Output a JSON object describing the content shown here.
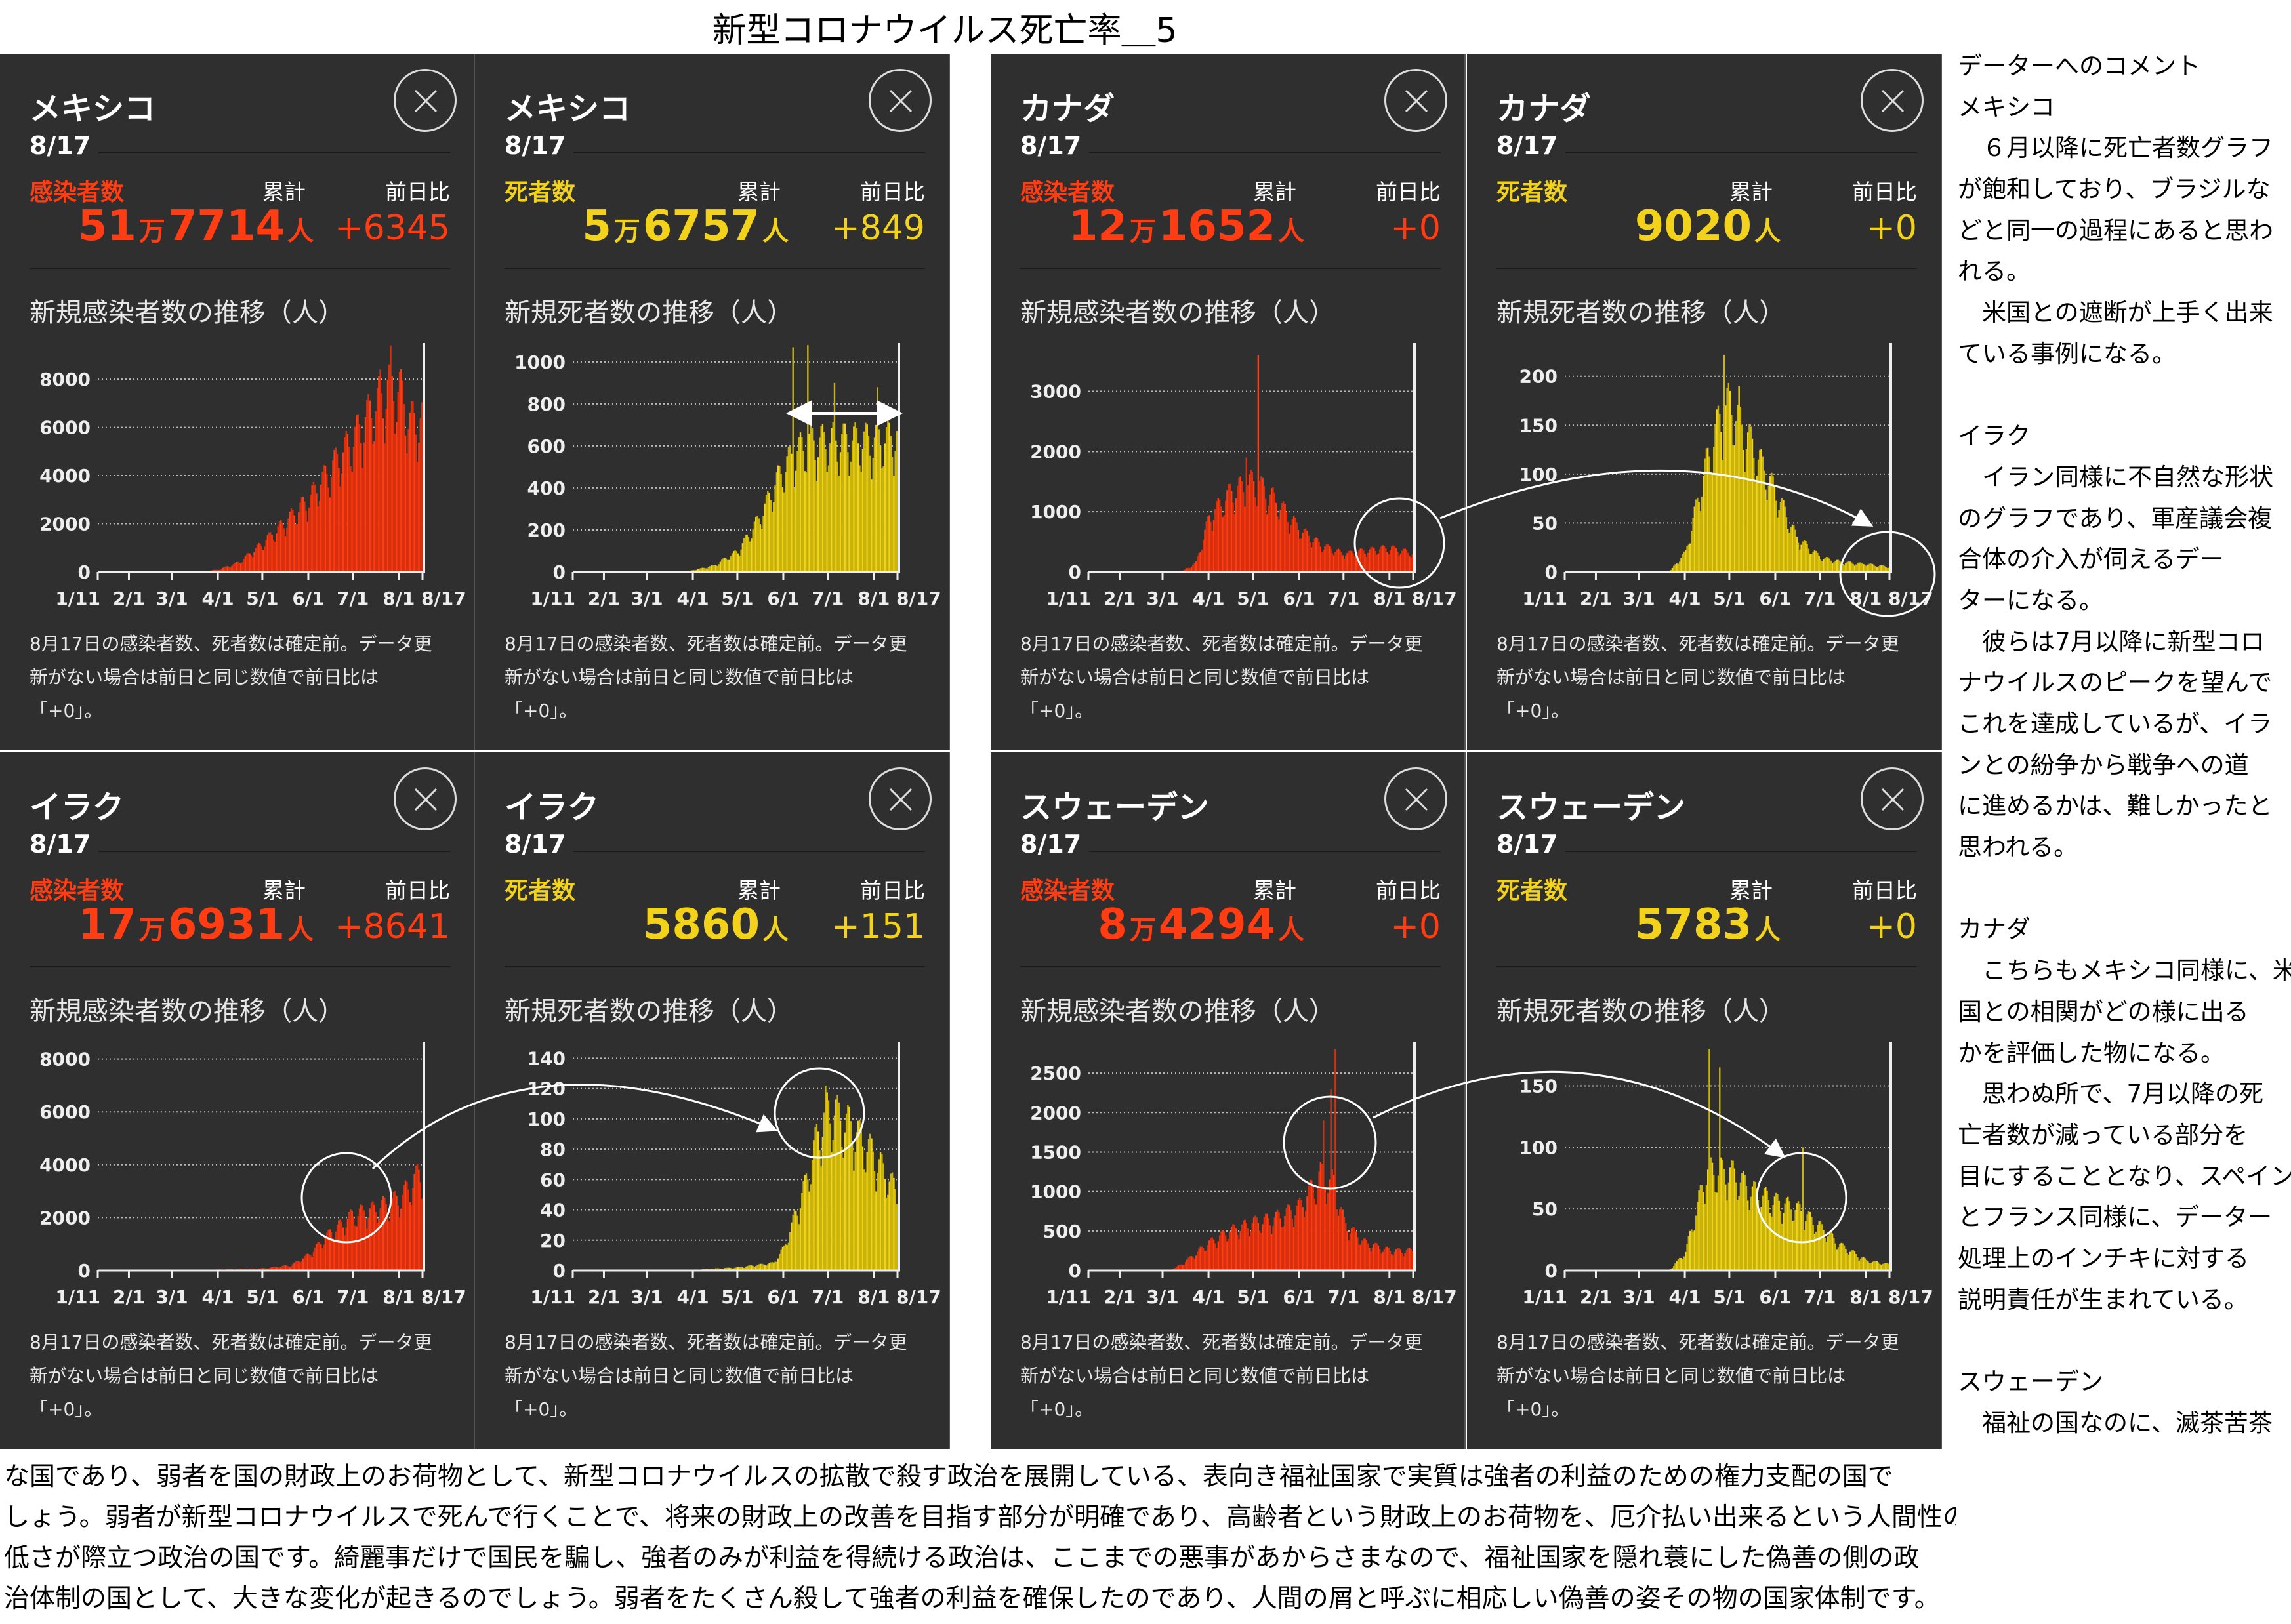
{
  "title": "新型コロナウイルス死亡率＿5",
  "common": {
    "date": "8/17",
    "total_label": "累計",
    "delta_label": "前日比",
    "notes": [
      "8月17日の感染者数、死者数は確定前。データ更",
      "新がない場合は前日と同じ数値で前日比は",
      "「+0」。"
    ]
  },
  "colors": {
    "infection": "#ff3c12",
    "death": "#f2d21a",
    "infection_bar": "#d8300f",
    "death_bar": "#c9b40a",
    "panel_bg": "#2f2f2f"
  },
  "panels": [
    {
      "country": "メキシコ",
      "metric": "感染者数",
      "kind": "infection",
      "total_parts": [
        "51",
        "万",
        "7714",
        "人"
      ],
      "delta": "+6345",
      "chart_title": "新規感染者数の推移（人）"
    },
    {
      "country": "メキシコ",
      "metric": "死者数",
      "kind": "death",
      "total_parts": [
        "5",
        "万",
        "6757",
        "人"
      ],
      "delta": "+849",
      "chart_title": "新規死者数の推移（人）"
    },
    {
      "country": "カナダ",
      "metric": "感染者数",
      "kind": "infection",
      "total_parts": [
        "12",
        "万",
        "1652",
        "人"
      ],
      "delta": "+0",
      "chart_title": "新規感染者数の推移（人）"
    },
    {
      "country": "カナダ",
      "metric": "死者数",
      "kind": "death",
      "total_parts": [
        "",
        "",
        "9020",
        "人"
      ],
      "delta": "+0",
      "chart_title": "新規死者数の推移（人）"
    },
    {
      "country": "イラク",
      "metric": "感染者数",
      "kind": "infection",
      "total_parts": [
        "17",
        "万",
        "6931",
        "人"
      ],
      "delta": "+8641",
      "chart_title": "新規感染者数の推移（人）"
    },
    {
      "country": "イラク",
      "metric": "死者数",
      "kind": "death",
      "total_parts": [
        "",
        "",
        "5860",
        "人"
      ],
      "delta": "+151",
      "chart_title": "新規死者数の推移（人）"
    },
    {
      "country": "スウェーデン",
      "metric": "感染者数",
      "kind": "infection",
      "total_parts": [
        "8",
        "万",
        "4294",
        "人"
      ],
      "delta": "+0",
      "chart_title": "新規感染者数の推移（人）"
    },
    {
      "country": "スウェーデン",
      "metric": "死者数",
      "kind": "death",
      "total_parts": [
        "",
        "",
        "5783",
        "人"
      ],
      "delta": "+0",
      "chart_title": "新規死者数の推移（人）"
    }
  ],
  "chart_data": [
    {
      "type": "bar",
      "title": "メキシコ 新規感染者数の推移（人）",
      "ylim": [
        0,
        9500
      ],
      "yticks": [
        0,
        2000,
        4000,
        6000,
        8000
      ],
      "xlim_days": [
        0,
        219
      ],
      "xticks": [
        {
          "label": "1/11",
          "day": 0
        },
        {
          "label": "2/1",
          "day": 21
        },
        {
          "label": "3/1",
          "day": 50
        },
        {
          "label": "4/1",
          "day": 81
        },
        {
          "label": "5/1",
          "day": 111
        },
        {
          "label": "6/1",
          "day": 142
        },
        {
          "label": "7/1",
          "day": 172
        },
        {
          "label": "8/1",
          "day": 203
        },
        {
          "label": "8/17",
          "day": 219
        }
      ],
      "points": [
        [
          68,
          0
        ],
        [
          81,
          100
        ],
        [
          95,
          400
        ],
        [
          111,
          1200
        ],
        [
          125,
          2000
        ],
        [
          142,
          3000
        ],
        [
          156,
          4200
        ],
        [
          172,
          5500
        ],
        [
          186,
          6800
        ],
        [
          195,
          7600
        ],
        [
          203,
          7500
        ],
        [
          210,
          6200
        ],
        [
          219,
          6300
        ]
      ],
      "spikes": [
        [
          197,
          9400
        ],
        [
          190,
          8400
        ]
      ]
    },
    {
      "type": "bar",
      "title": "メキシコ 新規死者数の推移（人）",
      "ylim": [
        0,
        1090
      ],
      "yticks": [
        0,
        200,
        400,
        600,
        800,
        1000
      ],
      "xlim_days": [
        0,
        219
      ],
      "xticks": [
        {
          "label": "1/11",
          "day": 0
        },
        {
          "label": "2/1",
          "day": 21
        },
        {
          "label": "3/1",
          "day": 50
        },
        {
          "label": "4/1",
          "day": 81
        },
        {
          "label": "5/1",
          "day": 111
        },
        {
          "label": "6/1",
          "day": 142
        },
        {
          "label": "7/1",
          "day": 172
        },
        {
          "label": "8/1",
          "day": 203
        },
        {
          "label": "8/17",
          "day": 219
        }
      ],
      "points": [
        [
          75,
          0
        ],
        [
          95,
          30
        ],
        [
          111,
          100
        ],
        [
          125,
          250
        ],
        [
          142,
          500
        ],
        [
          156,
          600
        ],
        [
          172,
          620
        ],
        [
          186,
          620
        ],
        [
          203,
          620
        ],
        [
          219,
          640
        ]
      ],
      "spikes": [
        [
          148,
          1070
        ],
        [
          158,
          1080
        ],
        [
          176,
          900
        ],
        [
          205,
          880
        ]
      ]
    },
    {
      "type": "bar",
      "title": "カナダ 新規感染者数の推移（人）",
      "ylim": [
        0,
        3800
      ],
      "yticks": [
        0,
        1000,
        2000,
        3000
      ],
      "xlim_days": [
        0,
        219
      ],
      "xticks": [
        {
          "label": "1/11",
          "day": 0
        },
        {
          "label": "2/1",
          "day": 21
        },
        {
          "label": "3/1",
          "day": 50
        },
        {
          "label": "4/1",
          "day": 81
        },
        {
          "label": "5/1",
          "day": 111
        },
        {
          "label": "6/1",
          "day": 142
        },
        {
          "label": "7/1",
          "day": 172
        },
        {
          "label": "8/1",
          "day": 203
        },
        {
          "label": "8/17",
          "day": 219
        }
      ],
      "points": [
        [
          62,
          0
        ],
        [
          72,
          150
        ],
        [
          81,
          900
        ],
        [
          95,
          1300
        ],
        [
          111,
          1500
        ],
        [
          125,
          1200
        ],
        [
          142,
          700
        ],
        [
          156,
          450
        ],
        [
          172,
          300
        ],
        [
          186,
          350
        ],
        [
          203,
          400
        ],
        [
          219,
          300
        ]
      ],
      "spikes": [
        [
          114,
          3600
        ],
        [
          106,
          1900
        ]
      ]
    },
    {
      "type": "bar",
      "title": "カナダ 新規死者数の推移（人）",
      "ylim": [
        0,
        234
      ],
      "yticks": [
        0,
        50,
        100,
        150,
        200
      ],
      "xlim_days": [
        0,
        219
      ],
      "xticks": [
        {
          "label": "1/11",
          "day": 0
        },
        {
          "label": "2/1",
          "day": 21
        },
        {
          "label": "3/1",
          "day": 50
        },
        {
          "label": "4/1",
          "day": 81
        },
        {
          "label": "5/1",
          "day": 111
        },
        {
          "label": "6/1",
          "day": 142
        },
        {
          "label": "7/1",
          "day": 172
        },
        {
          "label": "8/1",
          "day": 203
        },
        {
          "label": "8/17",
          "day": 219
        }
      ],
      "points": [
        [
          70,
          0
        ],
        [
          81,
          20
        ],
        [
          95,
          110
        ],
        [
          105,
          160
        ],
        [
          111,
          170
        ],
        [
          125,
          130
        ],
        [
          142,
          80
        ],
        [
          156,
          35
        ],
        [
          172,
          15
        ],
        [
          186,
          10
        ],
        [
          203,
          8
        ],
        [
          219,
          5
        ]
      ],
      "spikes": [
        [
          107,
          222
        ],
        [
          117,
          190
        ]
      ]
    },
    {
      "type": "bar",
      "title": "イラク 新規感染者数の推移（人）",
      "ylim": [
        0,
        8660
      ],
      "yticks": [
        0,
        2000,
        4000,
        6000,
        8000
      ],
      "xlim_days": [
        0,
        219
      ],
      "xticks": [
        {
          "label": "1/11",
          "day": 0
        },
        {
          "label": "2/1",
          "day": 21
        },
        {
          "label": "3/1",
          "day": 50
        },
        {
          "label": "4/1",
          "day": 81
        },
        {
          "label": "5/1",
          "day": 111
        },
        {
          "label": "6/1",
          "day": 142
        },
        {
          "label": "7/1",
          "day": 172
        },
        {
          "label": "8/1",
          "day": 203
        },
        {
          "label": "8/17",
          "day": 219
        }
      ],
      "points": [
        [
          60,
          0
        ],
        [
          81,
          40
        ],
        [
          111,
          80
        ],
        [
          130,
          200
        ],
        [
          142,
          600
        ],
        [
          156,
          1400
        ],
        [
          172,
          2100
        ],
        [
          186,
          2300
        ],
        [
          203,
          2700
        ],
        [
          212,
          3300
        ],
        [
          219,
          3900
        ]
      ],
      "spikes": []
    },
    {
      "type": "bar",
      "title": "イラク 新規死者数の推移（人）",
      "ylim": [
        0,
        151
      ],
      "yticks": [
        0,
        20,
        40,
        60,
        80,
        100,
        120,
        140
      ],
      "xlim_days": [
        0,
        219
      ],
      "xticks": [
        {
          "label": "1/11",
          "day": 0
        },
        {
          "label": "2/1",
          "day": 21
        },
        {
          "label": "3/1",
          "day": 50
        },
        {
          "label": "4/1",
          "day": 81
        },
        {
          "label": "5/1",
          "day": 111
        },
        {
          "label": "6/1",
          "day": 142
        },
        {
          "label": "7/1",
          "day": 172
        },
        {
          "label": "8/1",
          "day": 203
        },
        {
          "label": "8/17",
          "day": 219
        }
      ],
      "points": [
        [
          70,
          0
        ],
        [
          111,
          2
        ],
        [
          135,
          5
        ],
        [
          142,
          15
        ],
        [
          156,
          55
        ],
        [
          165,
          90
        ],
        [
          172,
          105
        ],
        [
          186,
          95
        ],
        [
          203,
          75
        ],
        [
          219,
          50
        ]
      ],
      "spikes": [
        [
          170,
          122
        ]
      ]
    },
    {
      "type": "bar",
      "title": "スウェーデン 新規感染者数の推移（人）",
      "ylim": [
        0,
        2900
      ],
      "yticks": [
        0,
        500,
        1000,
        1500,
        2000,
        2500
      ],
      "xlim_days": [
        0,
        219
      ],
      "xticks": [
        {
          "label": "1/11",
          "day": 0
        },
        {
          "label": "2/1",
          "day": 21
        },
        {
          "label": "3/1",
          "day": 50
        },
        {
          "label": "4/1",
          "day": 81
        },
        {
          "label": "5/1",
          "day": 111
        },
        {
          "label": "6/1",
          "day": 142
        },
        {
          "label": "7/1",
          "day": 172
        },
        {
          "label": "8/1",
          "day": 203
        },
        {
          "label": "8/17",
          "day": 219
        }
      ],
      "points": [
        [
          55,
          0
        ],
        [
          64,
          100
        ],
        [
          81,
          350
        ],
        [
          95,
          500
        ],
        [
          111,
          600
        ],
        [
          125,
          650
        ],
        [
          142,
          800
        ],
        [
          156,
          1200
        ],
        [
          165,
          1100
        ],
        [
          172,
          600
        ],
        [
          186,
          350
        ],
        [
          203,
          250
        ],
        [
          219,
          250
        ]
      ],
      "spikes": [
        [
          166,
          2800
        ],
        [
          163,
          2300
        ],
        [
          158,
          1900
        ]
      ]
    },
    {
      "type": "bar",
      "title": "スウェーデン 新規死者数の推移（人）",
      "ylim": [
        0,
        186
      ],
      "yticks": [
        0,
        50,
        100,
        150
      ],
      "xlim_days": [
        0,
        219
      ],
      "xticks": [
        {
          "label": "1/11",
          "day": 0
        },
        {
          "label": "2/1",
          "day": 21
        },
        {
          "label": "3/1",
          "day": 50
        },
        {
          "label": "4/1",
          "day": 81
        },
        {
          "label": "5/1",
          "day": 111
        },
        {
          "label": "6/1",
          "day": 142
        },
        {
          "label": "7/1",
          "day": 172
        },
        {
          "label": "8/1",
          "day": 203
        },
        {
          "label": "8/17",
          "day": 219
        }
      ],
      "points": [
        [
          70,
          0
        ],
        [
          81,
          15
        ],
        [
          95,
          80
        ],
        [
          111,
          80
        ],
        [
          125,
          65
        ],
        [
          142,
          55
        ],
        [
          156,
          50
        ],
        [
          172,
          35
        ],
        [
          186,
          20
        ],
        [
          203,
          8
        ],
        [
          219,
          5
        ]
      ],
      "spikes": [
        [
          97,
          180
        ],
        [
          104,
          165
        ],
        [
          160,
          100
        ]
      ]
    }
  ],
  "comments": {
    "lines": [
      "データーへのコメント",
      "メキシコ",
      "　６月以降に死亡者数グラフ",
      "が飽和しており、ブラジルな",
      "どと同一の過程にあると思わ",
      "れる。",
      "　米国との遮断が上手く出来",
      "ている事例になる。",
      "",
      "イラク",
      "　イラン同様に不自然な形状",
      "のグラフであり、軍産議会複",
      "合体の介入が伺えるデー",
      "ターになる。",
      "　彼らは7月以降に新型コロ",
      "ナウイルスのピークを望んで",
      "これを達成しているが、イラ",
      "ンとの紛争から戦争への道",
      "に進めるかは、難しかったと",
      "思われる。",
      "",
      "カナダ",
      "　こちらもメキシコ同様に、米",
      "国との相関がどの様に出る",
      "かを評価した物になる。",
      "　思わぬ所で、7月以降の死",
      "亡者数が減っている部分を",
      "目にすることとなり、スペイン",
      "とフランス同様に、データー",
      "処理上のインチキに対する",
      "説明責任が生まれている。",
      "",
      "スウェーデン",
      "　福祉の国なのに、滅茶苦茶"
    ]
  },
  "footer": {
    "lines": [
      "な国であり、弱者を国の財政上のお荷物として、新型コロナウイルスの拡散で殺す政治を展開している、表向き福祉国家で実質は強者の利益のための権力支配の国で",
      "しょう。弱者が新型コロナウイルスで死んで行くことで、将来の財政上の改善を目指す部分が明確であり、高齢者という財政上のお荷物を、厄介払い出来るという人間性の",
      "低さが際立つ政治の国です。綺麗事だけで国民を騙し、強者のみが利益を得続ける政治は、ここまでの悪事があからさまなので、福祉国家を隠れ蓑にした偽善の側の政",
      "治体制の国として、大きな変化が起きるのでしょう。弱者をたくさん殺して強者の利益を確保したのであり、人間の屑と呼ぶに相応しい偽善の姿その物の国家体制です。"
    ]
  }
}
